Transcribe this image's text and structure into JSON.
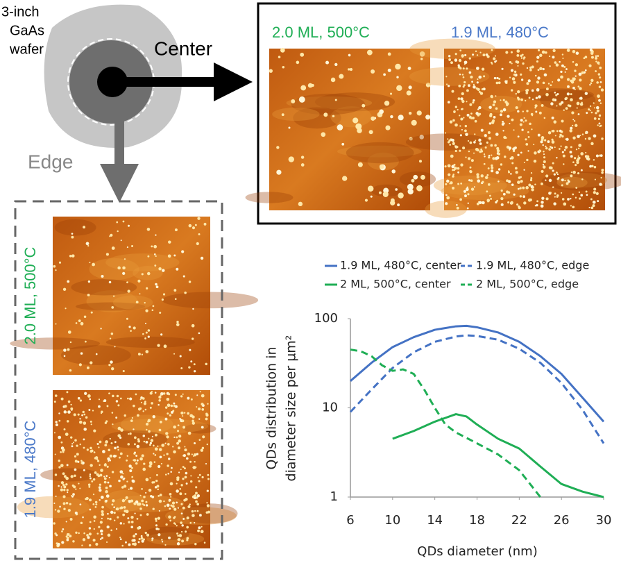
{
  "diagram": {
    "wafer_label": [
      "3-inch",
      "GaAs",
      "wafer"
    ],
    "center_label": "Center",
    "edge_label": "Edge",
    "top_panel": {
      "left_label": "2.0 ML, 500°C",
      "right_label": "1.9 ML, 480°C"
    },
    "left_panel": {
      "top_label": "2.0 ML, 500°C",
      "bottom_label": "1.9 ML, 480°C"
    }
  },
  "chart_data": {
    "type": "line",
    "x_label": "QDs diameter (nm)",
    "y_label": [
      "QDs distribution in",
      "diameter size per µm²"
    ],
    "log_y": true,
    "xlim": [
      6,
      30
    ],
    "xticks": [
      6,
      10,
      14,
      18,
      22,
      26,
      30
    ],
    "ylim": [
      1,
      100
    ],
    "yticks": [
      1,
      10,
      100
    ],
    "series": [
      {
        "name": "1.9 ML, 480°C, center",
        "color": "#4472c4",
        "dash": false,
        "x": [
          6,
          8,
          10,
          12,
          14,
          16,
          17,
          18,
          20,
          22,
          24,
          26,
          28,
          30
        ],
        "values": [
          20,
          32,
          48,
          62,
          75,
          82,
          83,
          80,
          70,
          55,
          38,
          24,
          13,
          7
        ]
      },
      {
        "name": "1.9 ML, 480°C, edge",
        "color": "#4472c4",
        "dash": true,
        "x": [
          6,
          8,
          10,
          12,
          14,
          16,
          17,
          18,
          20,
          22,
          24,
          26,
          28,
          30
        ],
        "values": [
          9,
          16,
          28,
          42,
          55,
          63,
          65,
          64,
          58,
          46,
          32,
          19,
          9.5,
          4
        ]
      },
      {
        "name": "2 ML, 500°C, center",
        "color": "#1fae55",
        "dash": false,
        "x": [
          10,
          12,
          14,
          16,
          17,
          18,
          20,
          22,
          24,
          26,
          28,
          30
        ],
        "values": [
          4.5,
          5.5,
          7,
          8.5,
          8,
          6.5,
          4.5,
          3.5,
          2.2,
          1.4,
          1.15,
          1
        ]
      },
      {
        "name": "2 ML, 500°C, edge",
        "color": "#1fae55",
        "dash": true,
        "x": [
          6,
          7,
          8,
          9,
          10,
          11,
          12,
          13,
          14,
          15,
          16,
          18,
          20,
          22,
          24
        ],
        "values": [
          45,
          43,
          38,
          30,
          26,
          27,
          24,
          16,
          10,
          6.5,
          5.3,
          4,
          3,
          2,
          1
        ]
      }
    ]
  }
}
